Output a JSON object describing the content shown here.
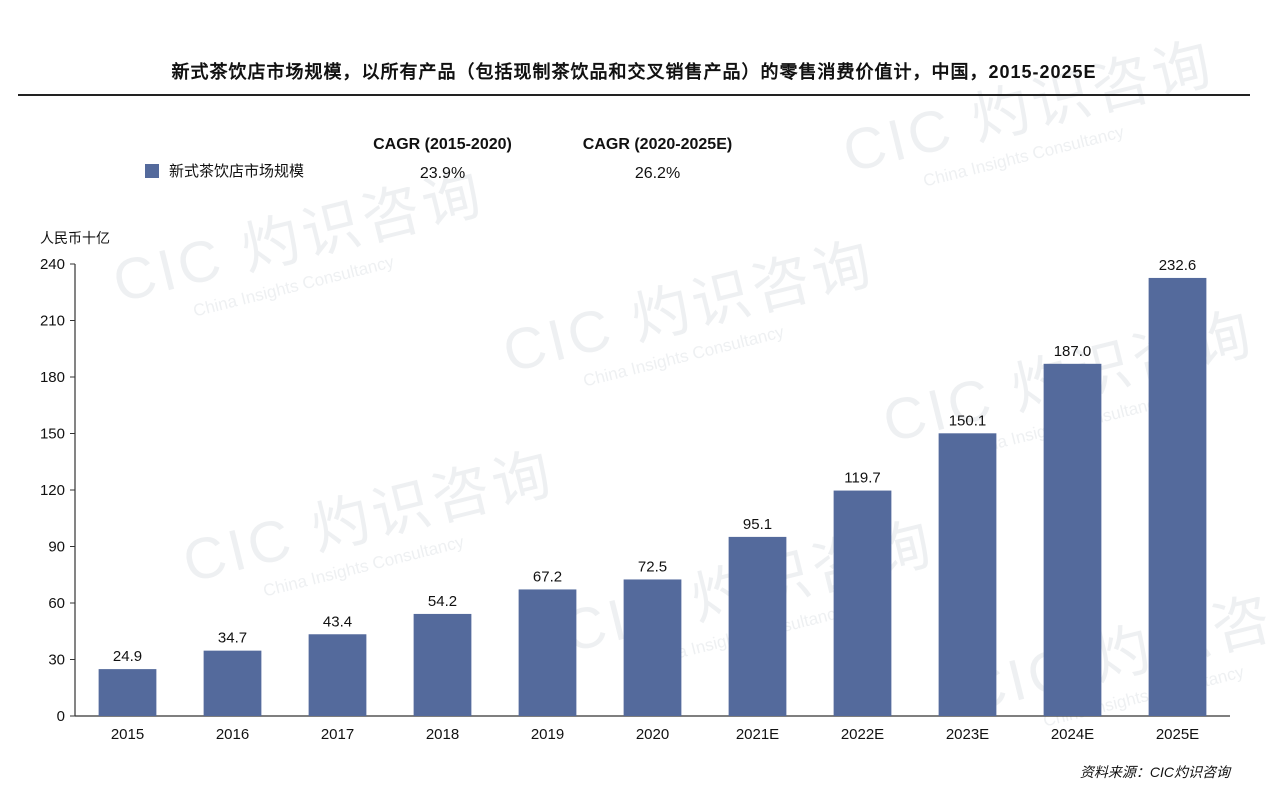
{
  "title": "新式茶饮店市场规模，以所有产品（包括现制茶饮品和交叉销售产品）的零售消费价值计，中国，2015-2025E",
  "legend_label": "新式茶饮店市场规模",
  "cagr": [
    {
      "header": "CAGR (2015-2020)",
      "value": "23.9%"
    },
    {
      "header": "CAGR (2020-2025E)",
      "value": "26.2%"
    }
  ],
  "unit_label": "人民币十亿",
  "source": "资料来源：CIC灼识咨询",
  "watermark": {
    "brand": "CIC 灼识咨询",
    "english": "China Insights Consultancy"
  },
  "colors": {
    "bar": "#546a9c",
    "axis": "#333333"
  },
  "chart_data": {
    "type": "bar",
    "title": "新式茶饮店市场规模，以所有产品（包括现制茶饮品和交叉销售产品）的零售消费价值计，中国，2015-2025E",
    "ylabel": "人民币十亿",
    "xlabel": "",
    "ylim": [
      0,
      240
    ],
    "yticks": [
      0,
      30,
      60,
      90,
      120,
      150,
      180,
      210,
      240
    ],
    "categories": [
      "2015",
      "2016",
      "2017",
      "2018",
      "2019",
      "2020",
      "2021E",
      "2022E",
      "2023E",
      "2024E",
      "2025E"
    ],
    "values": [
      24.9,
      34.7,
      43.4,
      54.2,
      67.2,
      72.5,
      95.1,
      119.7,
      150.1,
      187.0,
      232.6
    ],
    "value_labels": [
      "24.9",
      "34.7",
      "43.4",
      "54.2",
      "67.2",
      "72.5",
      "95.1",
      "119.7",
      "150.1",
      "187.0",
      "232.6"
    ],
    "series": [
      {
        "name": "新式茶饮店市场规模",
        "values": [
          24.9,
          34.7,
          43.4,
          54.2,
          67.2,
          72.5,
          95.1,
          119.7,
          150.1,
          187.0,
          232.6
        ]
      }
    ],
    "grid": false,
    "legend_position": "top-left"
  }
}
